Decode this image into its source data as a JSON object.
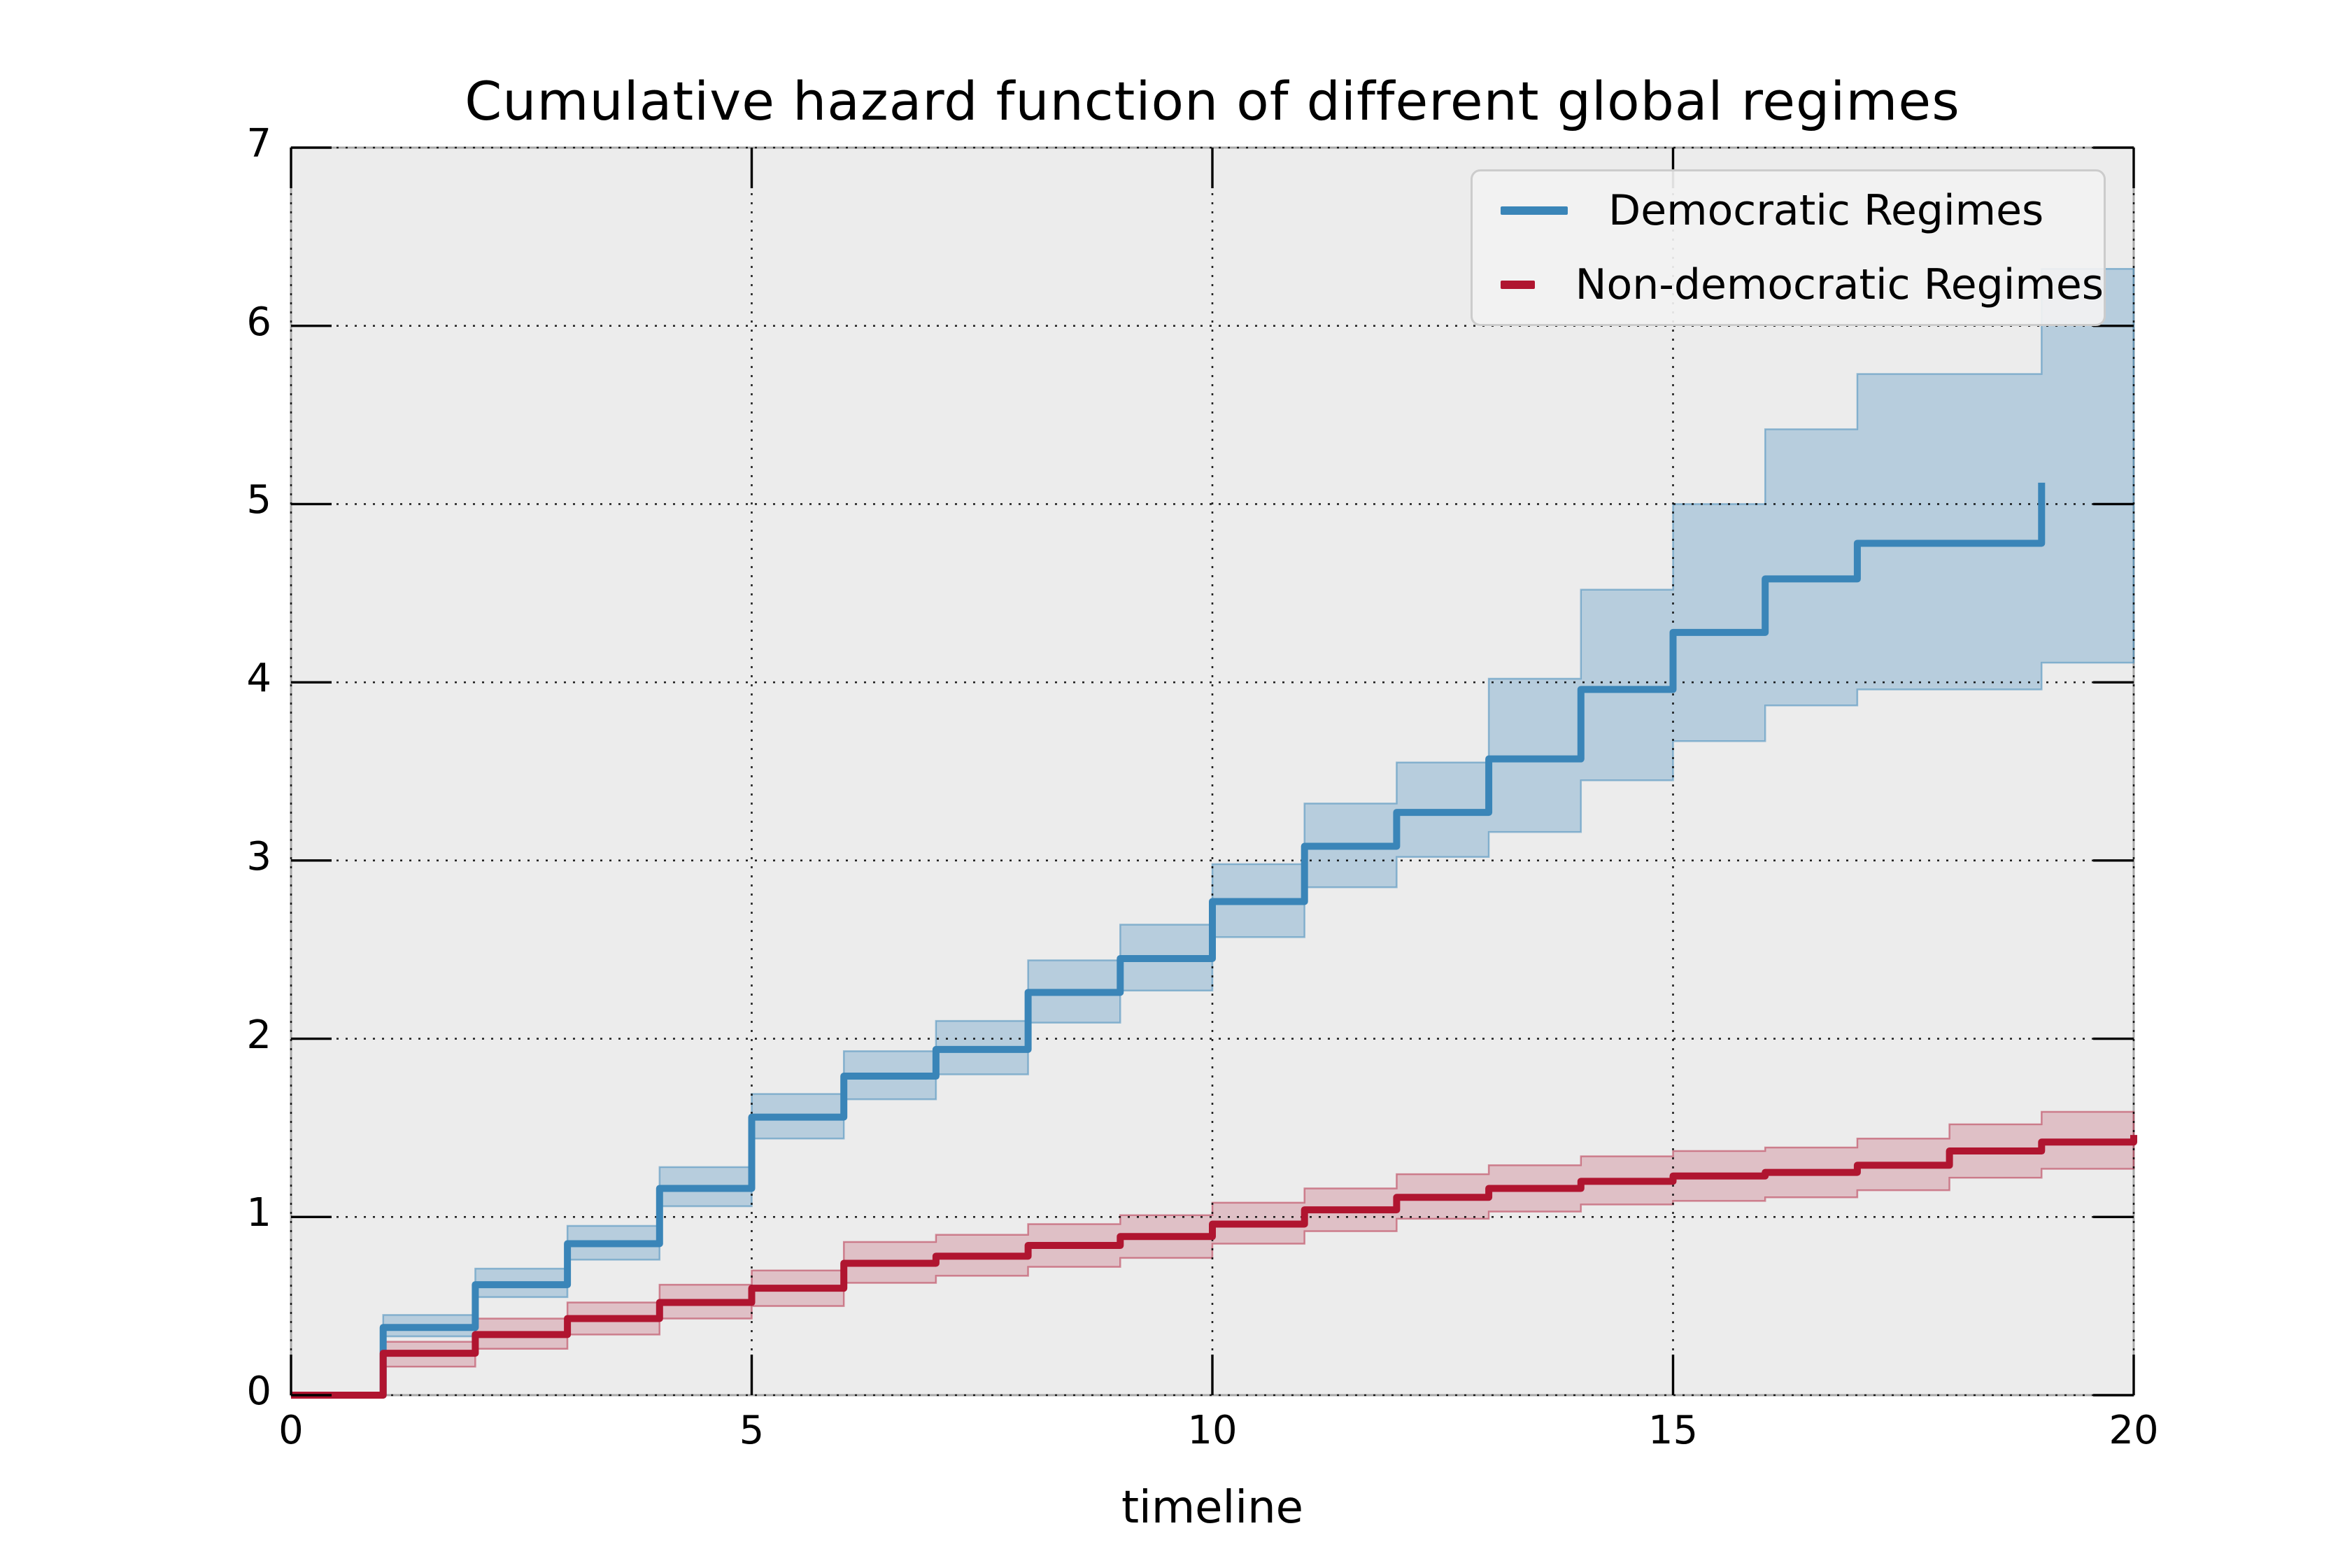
{
  "title": "Cumulative hazard function of different global regimes",
  "xlabel": "timeline",
  "legend": {
    "items": [
      {
        "label": "Democratic Regimes",
        "color": "#3a85b8"
      },
      {
        "label": "Non-democratic Regimes",
        "color": "#b01530"
      }
    ]
  },
  "colors": {
    "plot_background": "#ececec",
    "spine": "#a9a9a9",
    "grid": "rgba(0,0,0,0.85)",
    "tick": "#000000",
    "blue_line": "#3a85b8",
    "blue_band_fill": "rgba(58,133,184,0.30)",
    "blue_band_edge": "rgba(58,133,184,0.50)",
    "red_line": "#b01530",
    "red_band_fill": "rgba(176,21,48,0.20)",
    "red_band_edge": "rgba(176,21,48,0.45)"
  },
  "chart_data": {
    "type": "line",
    "subtype": "step-post-cumulative-hazard",
    "title": "Cumulative hazard function of different global regimes",
    "xlabel": "timeline",
    "ylabel": "",
    "xlim": [
      0,
      20
    ],
    "ylim": [
      0,
      7
    ],
    "xticks": [
      0,
      5,
      10,
      15,
      20
    ],
    "yticks": [
      0,
      1,
      2,
      3,
      4,
      5,
      6,
      7
    ],
    "grid": true,
    "grid_style": "dotted",
    "legend_position": "upper right",
    "series": [
      {
        "name": "Democratic Regimes",
        "color": "#3a85b8",
        "step": "post",
        "points": [
          [
            0,
            0
          ],
          [
            1,
            0.38
          ],
          [
            2,
            0.62
          ],
          [
            3,
            0.85
          ],
          [
            4,
            1.16
          ],
          [
            5,
            1.56
          ],
          [
            6,
            1.79
          ],
          [
            7,
            1.94
          ],
          [
            8,
            2.26
          ],
          [
            9,
            2.45
          ],
          [
            10,
            2.77
          ],
          [
            11,
            3.08
          ],
          [
            12,
            3.27
          ],
          [
            13,
            3.57
          ],
          [
            14,
            3.96
          ],
          [
            15,
            4.28
          ],
          [
            16,
            4.58
          ],
          [
            17,
            4.78
          ],
          [
            19,
            5.12
          ]
        ],
        "ci_segments": [
          [
            1,
            2,
            0.33,
            0.45
          ],
          [
            2,
            3,
            0.55,
            0.71
          ],
          [
            3,
            4,
            0.76,
            0.95
          ],
          [
            4,
            5,
            1.06,
            1.28
          ],
          [
            5,
            6,
            1.44,
            1.69
          ],
          [
            6,
            7,
            1.66,
            1.93
          ],
          [
            7,
            8,
            1.8,
            2.1
          ],
          [
            8,
            9,
            2.09,
            2.44
          ],
          [
            9,
            10,
            2.27,
            2.64
          ],
          [
            10,
            11,
            2.57,
            2.98
          ],
          [
            11,
            12,
            2.85,
            3.32
          ],
          [
            12,
            13,
            3.02,
            3.55
          ],
          [
            13,
            14,
            3.16,
            4.02
          ],
          [
            14,
            15,
            3.45,
            4.52
          ],
          [
            15,
            16,
            3.67,
            5.0
          ],
          [
            16,
            17,
            3.87,
            5.42
          ],
          [
            17,
            19,
            3.96,
            5.73
          ],
          [
            19,
            20,
            4.11,
            6.32
          ]
        ]
      },
      {
        "name": "Non-democratic Regimes",
        "color": "#b01530",
        "step": "post",
        "points": [
          [
            0,
            0
          ],
          [
            1,
            0.235
          ],
          [
            2,
            0.34
          ],
          [
            3,
            0.43
          ],
          [
            4,
            0.52
          ],
          [
            5,
            0.6
          ],
          [
            6,
            0.74
          ],
          [
            7,
            0.78
          ],
          [
            8,
            0.84
          ],
          [
            9,
            0.89
          ],
          [
            10,
            0.96
          ],
          [
            11,
            1.04
          ],
          [
            12,
            1.11
          ],
          [
            13,
            1.16
          ],
          [
            14,
            1.2
          ],
          [
            15,
            1.23
          ],
          [
            16,
            1.25
          ],
          [
            17,
            1.29
          ],
          [
            18,
            1.37
          ],
          [
            19,
            1.42
          ],
          [
            20,
            1.46
          ]
        ],
        "ci_segments": [
          [
            1,
            2,
            0.16,
            0.3
          ],
          [
            2,
            3,
            0.26,
            0.43
          ],
          [
            3,
            4,
            0.34,
            0.52
          ],
          [
            4,
            5,
            0.43,
            0.62
          ],
          [
            5,
            6,
            0.5,
            0.7
          ],
          [
            6,
            7,
            0.63,
            0.86
          ],
          [
            7,
            8,
            0.67,
            0.9
          ],
          [
            8,
            9,
            0.72,
            0.96
          ],
          [
            9,
            10,
            0.77,
            1.01
          ],
          [
            10,
            11,
            0.85,
            1.08
          ],
          [
            11,
            12,
            0.92,
            1.16
          ],
          [
            12,
            13,
            0.99,
            1.24
          ],
          [
            13,
            14,
            1.03,
            1.29
          ],
          [
            14,
            15,
            1.07,
            1.34
          ],
          [
            15,
            16,
            1.09,
            1.37
          ],
          [
            16,
            17,
            1.11,
            1.39
          ],
          [
            17,
            18,
            1.15,
            1.44
          ],
          [
            18,
            19,
            1.22,
            1.52
          ],
          [
            19,
            20,
            1.27,
            1.59
          ]
        ]
      }
    ]
  }
}
